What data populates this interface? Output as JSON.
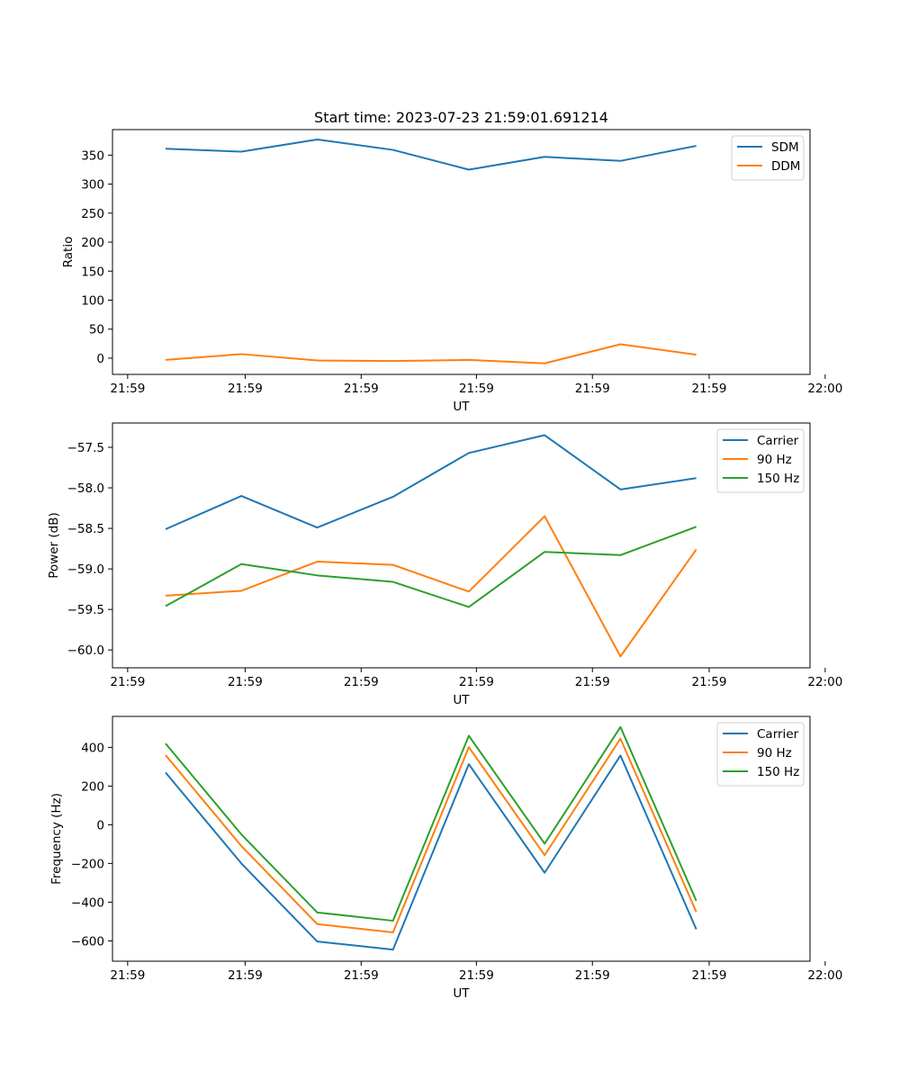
{
  "chart_data": [
    {
      "type": "line",
      "title": "Start time: 2023-07-23 21:59:01.691214",
      "xlabel": "UT",
      "ylabel": "Ratio",
      "x": [
        1,
        2,
        3,
        4,
        5,
        6,
        7,
        8
      ],
      "xlim": [
        0.3,
        9.5
      ],
      "x_ticks": [
        0.5,
        2.05,
        3.58,
        5.1,
        6.63,
        8.17,
        9.7
      ],
      "x_tick_labels": [
        "21:59",
        "21:59",
        "21:59",
        "21:59",
        "21:59",
        "21:59",
        "22:00"
      ],
      "ylim": [
        -28,
        394
      ],
      "y_ticks": [
        0,
        50,
        100,
        150,
        200,
        250,
        300,
        350
      ],
      "y_tick_labels": [
        "0",
        "50",
        "100",
        "150",
        "200",
        "250",
        "300",
        "350"
      ],
      "legend_position": "upper right",
      "series": [
        {
          "name": "SDM",
          "color": "#1f77b4",
          "values": [
            361,
            356,
            377,
            359,
            325,
            347,
            340,
            366
          ]
        },
        {
          "name": "DDM",
          "color": "#ff7f0e",
          "values": [
            -3,
            7,
            -4,
            -5,
            -3,
            -9,
            24,
            6
          ]
        }
      ]
    },
    {
      "type": "line",
      "title": "",
      "xlabel": "UT",
      "ylabel": "Power (dB)",
      "x": [
        1,
        2,
        3,
        4,
        5,
        6,
        7,
        8
      ],
      "xlim": [
        0.3,
        9.5
      ],
      "x_ticks": [
        0.5,
        2.05,
        3.58,
        5.1,
        6.63,
        8.17,
        9.7
      ],
      "x_tick_labels": [
        "21:59",
        "21:59",
        "21:59",
        "21:59",
        "21:59",
        "21:59",
        "22:00"
      ],
      "ylim": [
        -60.22,
        -57.2
      ],
      "y_ticks": [
        -60.0,
        -59.5,
        -59.0,
        -58.5,
        -58.0,
        -57.5
      ],
      "y_tick_labels": [
        "−60.0",
        "−59.5",
        "−59.0",
        "−58.5",
        "−58.0",
        "−57.5"
      ],
      "legend_position": "upper right",
      "series": [
        {
          "name": "Carrier",
          "color": "#1f77b4",
          "values": [
            -58.51,
            -58.1,
            -58.49,
            -58.11,
            -57.57,
            -57.35,
            -58.02,
            -57.88
          ]
        },
        {
          "name": "90 Hz",
          "color": "#ff7f0e",
          "values": [
            -59.33,
            -59.27,
            -58.91,
            -58.95,
            -59.28,
            -58.35,
            -60.08,
            -58.76
          ]
        },
        {
          "name": "150 Hz",
          "color": "#2ca02c",
          "values": [
            -59.46,
            -58.94,
            -59.08,
            -59.16,
            -59.47,
            -58.79,
            -58.83,
            -58.48
          ]
        }
      ]
    },
    {
      "type": "line",
      "title": "",
      "xlabel": "UT",
      "ylabel": "Frequency (Hz)",
      "x": [
        1,
        2,
        3,
        4,
        5,
        6,
        7,
        8
      ],
      "xlim": [
        0.3,
        9.5
      ],
      "x_ticks": [
        0.5,
        2.05,
        3.58,
        5.1,
        6.63,
        8.17,
        9.7
      ],
      "x_tick_labels": [
        "21:59",
        "21:59",
        "21:59",
        "21:59",
        "21:59",
        "21:59",
        "22:00"
      ],
      "ylim": [
        -705,
        560
      ],
      "y_ticks": [
        -600,
        -400,
        -200,
        0,
        200,
        400
      ],
      "y_tick_labels": [
        "−600",
        "−400",
        "−200",
        "0",
        "200",
        "400"
      ],
      "legend_position": "upper right",
      "series": [
        {
          "name": "Carrier",
          "color": "#1f77b4",
          "values": [
            270,
            -200,
            -603,
            -645,
            313,
            -248,
            358,
            -540
          ]
        },
        {
          "name": "90 Hz",
          "color": "#ff7f0e",
          "values": [
            360,
            -110,
            -513,
            -556,
            401,
            -157,
            445,
            -450
          ]
        },
        {
          "name": "150 Hz",
          "color": "#2ca02c",
          "values": [
            420,
            -50,
            -453,
            -496,
            460,
            -98,
            505,
            -393
          ]
        }
      ]
    }
  ]
}
